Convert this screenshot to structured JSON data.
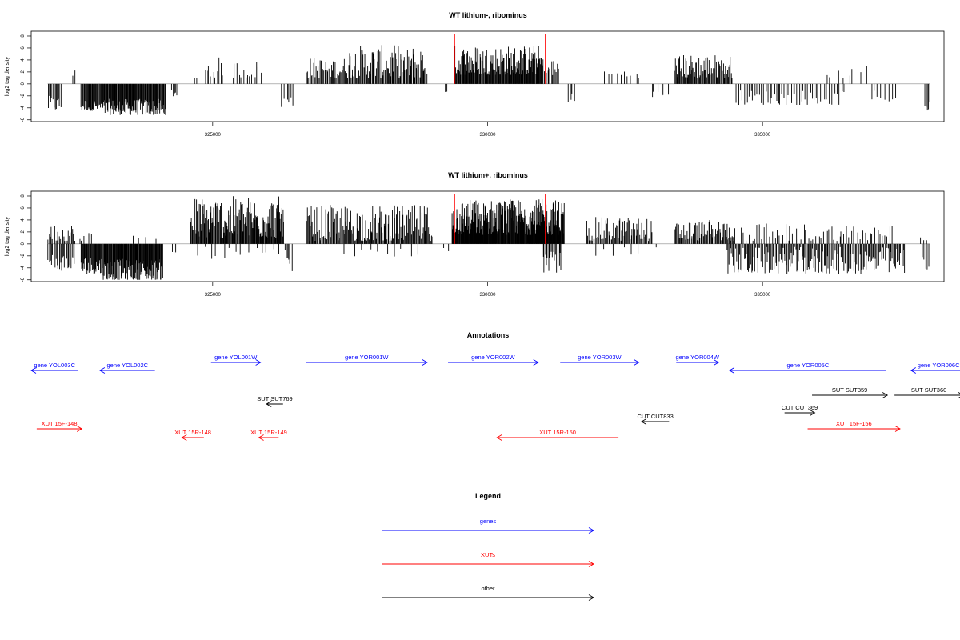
{
  "chart_data": [
    {
      "type": "bar",
      "panel": "top",
      "title": "WT lithium-, ribominus",
      "ylabel": "log2 tag density",
      "xlabel": "",
      "ylim": [
        -6,
        9
      ],
      "xlim": [
        321700,
        338300
      ],
      "y_ticks": [
        8,
        6,
        4,
        2,
        0,
        -2,
        -4,
        -6
      ],
      "x_ticks": [
        325000,
        330000,
        335000
      ],
      "x_tick_labels": [
        "325000",
        "330000",
        "335000"
      ],
      "grid": false,
      "red_markers": [
        329400,
        331050
      ],
      "segments": [
        {
          "start": 322000,
          "end": 322250,
          "min": -4.5,
          "max": -2.0,
          "n": 12
        },
        {
          "start": 322450,
          "end": 322500,
          "min": 1.0,
          "max": 2.5,
          "n": 2
        },
        {
          "start": 322600,
          "end": 323000,
          "min": -4.5,
          "max": -2.5,
          "n": 34
        },
        {
          "start": 323000,
          "end": 324150,
          "min": -5.2,
          "max": -2.5,
          "n": 110
        },
        {
          "start": 324250,
          "end": 324350,
          "min": -3.0,
          "max": -1.0,
          "n": 5
        },
        {
          "start": 324650,
          "end": 324720,
          "min": 1.0,
          "max": 1.0,
          "n": 2
        },
        {
          "start": 324850,
          "end": 325200,
          "min": 1.0,
          "max": 4.5,
          "n": 10
        },
        {
          "start": 325350,
          "end": 325900,
          "min": 1.0,
          "max": 4.0,
          "n": 14
        },
        {
          "start": 326250,
          "end": 326500,
          "min": -4.0,
          "max": -1.5,
          "n": 6
        },
        {
          "start": 326700,
          "end": 327400,
          "min": 1.0,
          "max": 4.5,
          "n": 40
        },
        {
          "start": 327400,
          "end": 328900,
          "min": 1.0,
          "max": 6.5,
          "n": 95
        },
        {
          "start": 329200,
          "end": 329280,
          "min": -2.0,
          "max": -1.0,
          "n": 2
        },
        {
          "start": 329400,
          "end": 331000,
          "min": 1.5,
          "max": 6.5,
          "n": 150
        },
        {
          "start": 331000,
          "end": 331300,
          "min": 1.0,
          "max": 4.5,
          "n": 14
        },
        {
          "start": 331450,
          "end": 331600,
          "min": -3.0,
          "max": -1.5,
          "n": 4
        },
        {
          "start": 332100,
          "end": 332800,
          "min": 1.0,
          "max": 2.5,
          "n": 10
        },
        {
          "start": 332950,
          "end": 333300,
          "min": -2.5,
          "max": -1.0,
          "n": 6
        },
        {
          "start": 333400,
          "end": 334450,
          "min": 1.0,
          "max": 5.0,
          "n": 80
        },
        {
          "start": 334500,
          "end": 336500,
          "min": -3.5,
          "max": -1.0,
          "n": 52
        },
        {
          "start": 336100,
          "end": 336800,
          "min": 1.0,
          "max": 2.5,
          "n": 7
        },
        {
          "start": 336850,
          "end": 336900,
          "min": 1.0,
          "max": 4.0,
          "n": 1
        },
        {
          "start": 336950,
          "end": 337450,
          "min": -3.0,
          "max": -1.0,
          "n": 8
        },
        {
          "start": 337950,
          "end": 338050,
          "min": -4.5,
          "max": -3.0,
          "n": 5
        }
      ]
    },
    {
      "type": "bar",
      "panel": "middle",
      "title": "WT lithium+, ribominus",
      "ylabel": "log2 tag density",
      "xlabel": "",
      "ylim": [
        -6,
        9
      ],
      "xlim": [
        321700,
        338300
      ],
      "y_ticks": [
        8,
        6,
        4,
        2,
        0,
        -2,
        -4,
        -6
      ],
      "x_ticks": [
        325000,
        330000,
        335000
      ],
      "x_tick_labels": [
        "325000",
        "330000",
        "335000"
      ],
      "grid": false,
      "red_markers": [
        329400,
        331050
      ],
      "segments": [
        {
          "start": 322000,
          "end": 322500,
          "min": 0.5,
          "max": 3.5,
          "n": 25
        },
        {
          "start": 322000,
          "end": 322500,
          "min": -4.5,
          "max": -1.5,
          "n": 25
        },
        {
          "start": 322550,
          "end": 322800,
          "min": 0.5,
          "max": 2.0,
          "n": 6
        },
        {
          "start": 322600,
          "end": 323000,
          "min": -5.0,
          "max": -2.0,
          "n": 35
        },
        {
          "start": 323000,
          "end": 324100,
          "min": -6.0,
          "max": -2.5,
          "n": 120
        },
        {
          "start": 323500,
          "end": 324000,
          "min": 0.5,
          "max": 1.5,
          "n": 4
        },
        {
          "start": 324250,
          "end": 324400,
          "min": -2.0,
          "max": -0.5,
          "n": 4
        },
        {
          "start": 324600,
          "end": 326300,
          "min": 1.0,
          "max": 8.0,
          "n": 150
        },
        {
          "start": 324700,
          "end": 326300,
          "min": -2.5,
          "max": -0.5,
          "n": 14
        },
        {
          "start": 326300,
          "end": 326450,
          "min": -5.0,
          "max": -1.0,
          "n": 6
        },
        {
          "start": 326700,
          "end": 329000,
          "min": 0.5,
          "max": 6.5,
          "n": 160
        },
        {
          "start": 327300,
          "end": 328800,
          "min": -2.5,
          "max": -0.5,
          "n": 10
        },
        {
          "start": 329200,
          "end": 329300,
          "min": -1.5,
          "max": -0.5,
          "n": 2
        },
        {
          "start": 329350,
          "end": 331400,
          "min": 1.5,
          "max": 7.5,
          "n": 280
        },
        {
          "start": 331000,
          "end": 331350,
          "min": -5.0,
          "max": -1.0,
          "n": 18
        },
        {
          "start": 331800,
          "end": 333000,
          "min": 0.5,
          "max": 4.5,
          "n": 70
        },
        {
          "start": 331900,
          "end": 333200,
          "min": -2.0,
          "max": -0.5,
          "n": 8
        },
        {
          "start": 333400,
          "end": 334500,
          "min": 0.5,
          "max": 4.0,
          "n": 70
        },
        {
          "start": 334350,
          "end": 337600,
          "min": -5.0,
          "max": -0.5,
          "n": 170
        },
        {
          "start": 334600,
          "end": 337400,
          "min": 0.5,
          "max": 3.5,
          "n": 60
        },
        {
          "start": 337850,
          "end": 338000,
          "min": 0.5,
          "max": 1.5,
          "n": 3
        },
        {
          "start": 337900,
          "end": 338050,
          "min": -4.5,
          "max": -2.0,
          "n": 5
        }
      ]
    },
    {
      "type": "annotation_track",
      "panel": "annotations",
      "title": "Annotations",
      "xlim": [
        321700,
        338300
      ],
      "features": [
        {
          "label": "gene YOL003C",
          "start": 321700,
          "end": 322550,
          "strand": "-",
          "row": 1,
          "kind": "gene"
        },
        {
          "label": "gene YOL002C",
          "start": 322950,
          "end": 323950,
          "strand": "-",
          "row": 1,
          "kind": "gene"
        },
        {
          "label": "gene YOL001W",
          "start": 324970,
          "end": 325870,
          "strand": "+",
          "row": 0,
          "kind": "gene"
        },
        {
          "label": "gene YOR001W",
          "start": 326700,
          "end": 328900,
          "strand": "+",
          "row": 0,
          "kind": "gene"
        },
        {
          "label": "gene YOR002W",
          "start": 329280,
          "end": 330920,
          "strand": "+",
          "row": 0,
          "kind": "gene"
        },
        {
          "label": "gene YOR003W",
          "start": 331320,
          "end": 332750,
          "strand": "+",
          "row": 0,
          "kind": "gene"
        },
        {
          "label": "gene YOR004W",
          "start": 333430,
          "end": 334200,
          "strand": "+",
          "row": 0,
          "kind": "gene"
        },
        {
          "label": "gene YOR005C",
          "start": 334400,
          "end": 337250,
          "strand": "-",
          "row": 1,
          "kind": "gene"
        },
        {
          "label": "gene YOR006C",
          "start": 337700,
          "end": 338700,
          "strand": "-",
          "row": 1,
          "kind": "gene"
        },
        {
          "label": "SUT SUT769",
          "start": 325980,
          "end": 326280,
          "strand": "-",
          "row": 4,
          "kind": "other"
        },
        {
          "label": "CUT CUT833",
          "start": 332800,
          "end": 333300,
          "strand": "-",
          "row": 6,
          "kind": "other"
        },
        {
          "label": "CUT CUT369",
          "start": 335400,
          "end": 335950,
          "strand": "+",
          "row": 5,
          "kind": "other"
        },
        {
          "label": "SUT SUT359",
          "start": 335900,
          "end": 337270,
          "strand": "+",
          "row": 3,
          "kind": "other"
        },
        {
          "label": "SUT SUT360",
          "start": 337400,
          "end": 338650,
          "strand": "+",
          "row": 3,
          "kind": "other"
        },
        {
          "label": "XUT 15F-148",
          "start": 321800,
          "end": 322620,
          "strand": "+",
          "row": 7,
          "kind": "xut"
        },
        {
          "label": "XUT 15R-148",
          "start": 324440,
          "end": 324840,
          "strand": "-",
          "row": 8,
          "kind": "xut"
        },
        {
          "label": "XUT 15R-149",
          "start": 325840,
          "end": 326200,
          "strand": "-",
          "row": 8,
          "kind": "xut"
        },
        {
          "label": "XUT 15R-150",
          "start": 330170,
          "end": 332380,
          "strand": "-",
          "row": 8,
          "kind": "xut"
        },
        {
          "label": "XUT 15F-156",
          "start": 335820,
          "end": 337500,
          "strand": "+",
          "row": 7,
          "kind": "xut"
        }
      ]
    },
    {
      "type": "legend",
      "title": "Legend",
      "entries": [
        {
          "label": "genes",
          "kind": "gene"
        },
        {
          "label": "XUTs",
          "kind": "xut"
        },
        {
          "label": "other",
          "kind": "other"
        }
      ]
    }
  ],
  "colors": {
    "gene": "#0000ff",
    "xut": "#ff0000",
    "other": "#000000",
    "marker": "#ff0000",
    "bar": "#000000"
  }
}
